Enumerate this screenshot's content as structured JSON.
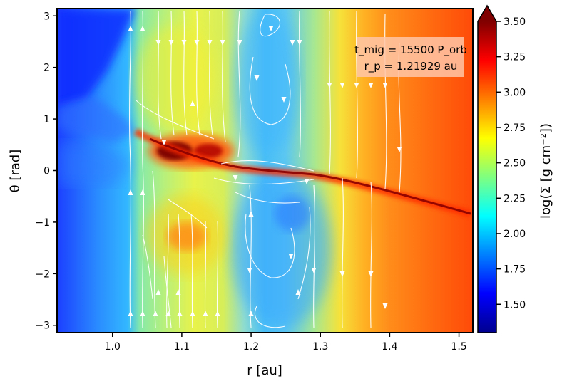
{
  "chart_data": {
    "type": "heatmap",
    "title": "",
    "xlabel": "r [au]",
    "ylabel": "θ [rad]",
    "xlim": [
      0.92,
      1.52
    ],
    "ylim": [
      -3.14159,
      3.14159
    ],
    "xticks": [
      1.0,
      1.1,
      1.2,
      1.3,
      1.4,
      1.5
    ],
    "xtick_labels": [
      "1.0",
      "1.1",
      "1.2",
      "1.3",
      "1.4",
      "1.5"
    ],
    "yticks": [
      -3,
      -2,
      -1,
      0,
      1,
      2,
      3
    ],
    "ytick_labels": [
      "−3",
      "−2",
      "−1",
      "0",
      "1",
      "2",
      "3"
    ],
    "colorbar": {
      "label": "log(Σ [g cm⁻²])",
      "colormap": "jet",
      "range": [
        1.3,
        3.5
      ],
      "extend": "max",
      "ticks": [
        1.5,
        1.75,
        2.0,
        2.25,
        2.5,
        2.75,
        3.0,
        3.25,
        3.5
      ],
      "tick_labels": [
        "1.50",
        "1.75",
        "2.00",
        "2.25",
        "2.50",
        "2.75",
        "3.00",
        "3.25",
        "3.50"
      ]
    },
    "annotation": {
      "line1": "t_mig = 15500 P_orb",
      "line2": "r_p = 1.21929 au",
      "position": "top-right",
      "box_color": "#ffc6a8"
    },
    "planet": {
      "r": 1.21929,
      "theta": 0.0
    },
    "streamlines": {
      "color": "#ffffff",
      "count": 2
    }
  }
}
